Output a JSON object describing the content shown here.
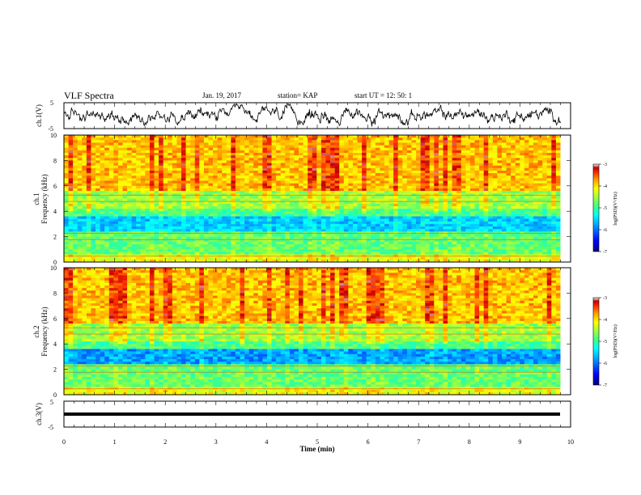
{
  "header": {
    "title": "VLF Spectra",
    "date": "Jan. 19, 2017",
    "station": "station= KAP",
    "start_time": "start  UT  =   12: 50: 1"
  },
  "chart_data": [
    {
      "type": "line",
      "panel": "ch1-waveform",
      "ylabel": "ch.1(V)",
      "ylim": [
        -5,
        5
      ],
      "yticks": [
        "5",
        "-5"
      ],
      "xlim": [
        0,
        10
      ],
      "x_extent_of_data": [
        0,
        9.8
      ],
      "series": [
        {
          "color": "#000000",
          "description_values": {
            "mean": 0.2,
            "range": [
              -2.8,
              3.8
            ]
          }
        }
      ]
    },
    {
      "type": "heatmap",
      "panel": "ch1-spectrogram",
      "ylabel": "ch.1\nFrequency (kHz)",
      "ylim": [
        0,
        10
      ],
      "yticks": [
        "0",
        "2",
        "4",
        "6",
        "8",
        "10"
      ],
      "xlim": [
        0,
        10
      ],
      "colorbar": {
        "label": "log(PSD)(V²/Hz)",
        "min": -7,
        "max": -3,
        "ticks": [
          "-3",
          "-4",
          "-5",
          "-6",
          "-7"
        ]
      }
    },
    {
      "type": "heatmap",
      "panel": "ch2-spectrogram",
      "ylabel": "ch.2\nFrequency (kHz)",
      "ylim": [
        0,
        10
      ],
      "yticks": [
        "0",
        "2",
        "4",
        "6",
        "8",
        "10"
      ],
      "xlim": [
        0,
        10
      ],
      "colorbar": {
        "label": "log(PSD)(V²/Hz)",
        "min": -7,
        "max": -3,
        "ticks": [
          "-3",
          "-4",
          "-5",
          "-6",
          "-7"
        ]
      }
    },
    {
      "type": "line",
      "panel": "ch3-waveform",
      "ylabel": "ch.3(V)",
      "ylim": [
        -5,
        5
      ],
      "yticks": [
        "5",
        "-5"
      ],
      "xlim": [
        0,
        10
      ],
      "series": [
        {
          "color": "#000000",
          "values": {
            "level": 0
          }
        }
      ]
    }
  ],
  "xaxis": {
    "label": "Time (min)",
    "ticks": [
      "0",
      "1",
      "2",
      "3",
      "4",
      "5",
      "6",
      "7",
      "8",
      "9",
      "10"
    ]
  },
  "colors": {
    "jet": [
      "#000080",
      "#0000ff",
      "#00a0ff",
      "#00ffff",
      "#40ff80",
      "#a0ff40",
      "#ffff00",
      "#ffa000",
      "#ff3000",
      "#c00000",
      "#ffffff"
    ]
  }
}
